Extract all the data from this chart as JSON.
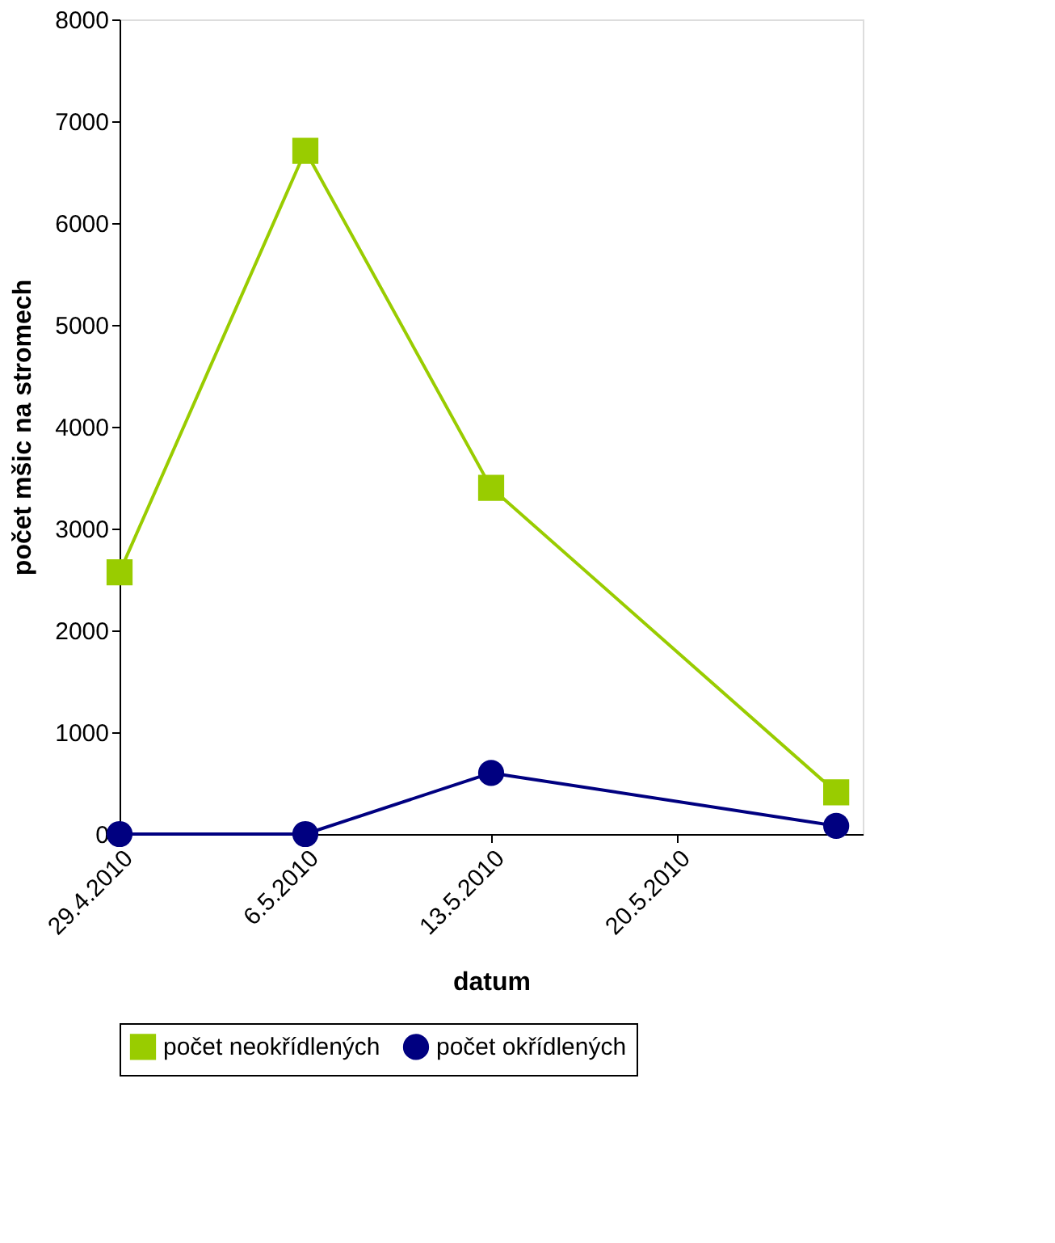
{
  "chart_data": {
    "type": "line",
    "xlabel": "datum",
    "ylabel": "počet mšic na stromech",
    "x": [
      "2010-04-29",
      "2010-05-06",
      "2010-05-13",
      "2010-05-26"
    ],
    "series": [
      {
        "name": "počet neokřídlených",
        "color": "#99cc00",
        "marker": "square",
        "values": [
          2570,
          6710,
          3400,
          410
        ]
      },
      {
        "name": "počet okřídlených",
        "color": "#000080",
        "marker": "circle",
        "values": [
          0,
          0,
          600,
          80
        ]
      }
    ],
    "xlim": [
      "2010-04-29",
      "2010-05-27"
    ],
    "xticks": [
      {
        "value": "2010-04-29",
        "label": "29.4.2010"
      },
      {
        "value": "2010-05-06",
        "label": "6.5.2010"
      },
      {
        "value": "2010-05-13",
        "label": "13.5.2010"
      },
      {
        "value": "2010-05-20",
        "label": "20.5.2010"
      }
    ],
    "ylim": [
      0,
      8000
    ],
    "yticks": [
      0,
      1000,
      2000,
      3000,
      4000,
      5000,
      6000,
      7000,
      8000
    ],
    "grid": false,
    "legend": "bottom",
    "line_style": "solid"
  }
}
